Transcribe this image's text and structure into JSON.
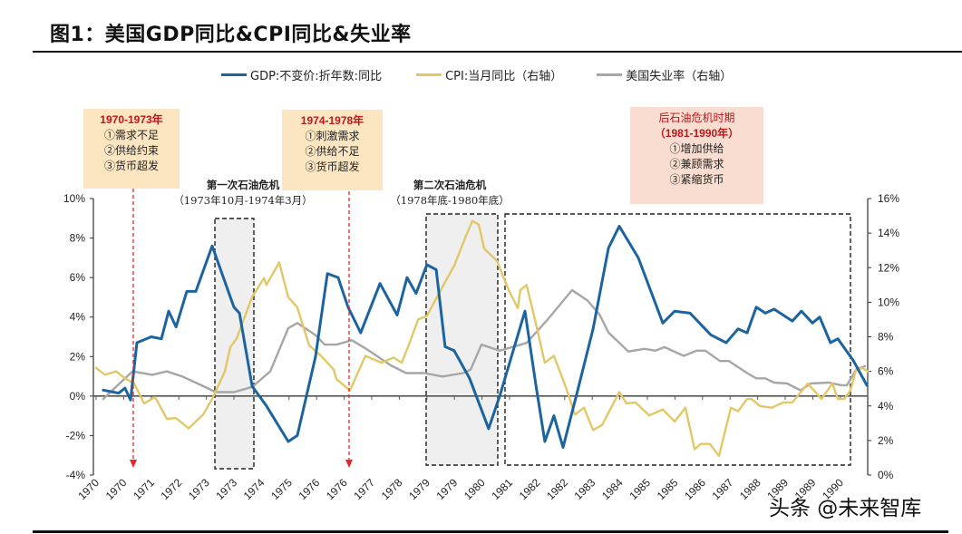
{
  "title": "图1：美国GDP同比&CPI同比&失业率",
  "annotations": {
    "box1": {
      "heading": "1970-1973年",
      "lines": [
        "①需求不足",
        "②供给约束",
        "③货币超发"
      ]
    },
    "box2": {
      "heading": "1974-1978年",
      "lines": [
        "①刺激需求",
        "②供给不足",
        "③货币超发"
      ]
    },
    "box3": {
      "heading": "后石油危机时期",
      "subheading": "（1981-1990年）",
      "lines": [
        "①增加供给",
        "②兼顾需求",
        "③紧缩货币"
      ]
    },
    "crisis1": {
      "name": "第一次石油危机",
      "period": "（1973年10月-1974年3月）"
    },
    "crisis2": {
      "name": "第二次石油危机",
      "period": "（1978年底-1980年底）"
    }
  },
  "watermark": "头条 @未来智库",
  "colors": {
    "gdp": "#1c64a0",
    "cpi": "#e2c766",
    "unemployment": "#a6a6a6",
    "arrow": "#e8262b",
    "box12": "#fce6c2",
    "box3": "#f9ddd0",
    "shade": "#efefef"
  },
  "chart_data": {
    "type": "line",
    "title": "",
    "legend_position": "top",
    "grid": false,
    "x_tick_labels": [
      "1970",
      "1970",
      "1971",
      "1972",
      "1973",
      "1973",
      "1974",
      "1975",
      "1976",
      "1976",
      "1977",
      "1978",
      "1979",
      "1979",
      "1980",
      "1981",
      "1982",
      "1982",
      "1983",
      "1984",
      "1985",
      "1985",
      "1986",
      "1987",
      "1988",
      "1989",
      "1989",
      "1990"
    ],
    "x_unit_note": "x values are positions along the category axis (tick index)",
    "y_left": {
      "range": [
        -4,
        10
      ],
      "ticks": [
        "-4%",
        "-2%",
        "0%",
        "2%",
        "4%",
        "6%",
        "8%",
        "10%"
      ]
    },
    "y_right": {
      "range": [
        0,
        16
      ],
      "ticks": [
        "0%",
        "2%",
        "4%",
        "6%",
        "8%",
        "10%",
        "12%",
        "14%",
        "16%"
      ]
    },
    "series": [
      {
        "name": "GDP:不变价:折年数:同比",
        "axis": "left",
        "color": "#1c64a0",
        "points": [
          [
            0.26,
            0.3
          ],
          [
            0.82,
            0.15
          ],
          [
            1.05,
            0.4
          ],
          [
            1.25,
            -0.2
          ],
          [
            1.48,
            2.7
          ],
          [
            2.0,
            3.0
          ],
          [
            2.37,
            2.9
          ],
          [
            2.63,
            4.3
          ],
          [
            2.9,
            3.5
          ],
          [
            3.29,
            5.3
          ],
          [
            3.62,
            5.3
          ],
          [
            4.21,
            7.6
          ],
          [
            5.0,
            4.5
          ],
          [
            5.2,
            4.2
          ],
          [
            5.66,
            0.5
          ],
          [
            6.18,
            -0.5
          ],
          [
            6.97,
            -2.3
          ],
          [
            7.3,
            -2.0
          ],
          [
            7.96,
            2.0
          ],
          [
            8.39,
            6.2
          ],
          [
            8.78,
            6.0
          ],
          [
            9.14,
            4.5
          ],
          [
            9.6,
            3.2
          ],
          [
            10.3,
            5.7
          ],
          [
            10.92,
            4.1
          ],
          [
            11.28,
            6.0
          ],
          [
            11.61,
            5.2
          ],
          [
            12.0,
            6.65
          ],
          [
            12.34,
            6.4
          ],
          [
            12.66,
            2.5
          ],
          [
            12.99,
            2.3
          ],
          [
            13.55,
            0.9
          ],
          [
            14.24,
            -1.65
          ],
          [
            14.64,
            0
          ],
          [
            15.56,
            4.3
          ],
          [
            15.95,
            0.6
          ],
          [
            16.28,
            -2.3
          ],
          [
            16.61,
            -1.0
          ],
          [
            16.94,
            -2.6
          ],
          [
            17.5,
            0.45
          ],
          [
            18.03,
            3.4
          ],
          [
            18.59,
            7.5
          ],
          [
            18.98,
            8.6
          ],
          [
            19.67,
            7.0
          ],
          [
            20.56,
            3.7
          ],
          [
            20.99,
            4.3
          ],
          [
            21.55,
            4.2
          ],
          [
            22.3,
            3.1
          ],
          [
            22.86,
            2.7
          ],
          [
            23.29,
            3.4
          ],
          [
            23.62,
            3.2
          ],
          [
            23.95,
            4.5
          ],
          [
            24.28,
            4.2
          ],
          [
            24.6,
            4.4
          ],
          [
            25.26,
            3.8
          ],
          [
            25.59,
            4.3
          ],
          [
            25.99,
            3.7
          ],
          [
            26.25,
            4.0
          ],
          [
            26.64,
            2.7
          ],
          [
            26.91,
            2.9
          ],
          [
            27.47,
            1.8
          ],
          [
            27.96,
            0.55
          ]
        ]
      },
      {
        "name": "CPI:当月同比（右轴）",
        "axis": "right",
        "color": "#e2c766",
        "points": [
          [
            0,
            6.2
          ],
          [
            0.33,
            5.8
          ],
          [
            0.72,
            6.0
          ],
          [
            1.05,
            5.6
          ],
          [
            1.38,
            5.3
          ],
          [
            1.74,
            4.15
          ],
          [
            2.14,
            4.5
          ],
          [
            2.57,
            3.25
          ],
          [
            2.89,
            3.3
          ],
          [
            3.36,
            2.7
          ],
          [
            3.88,
            3.5
          ],
          [
            4.21,
            4.4
          ],
          [
            4.67,
            6.0
          ],
          [
            4.87,
            7.4
          ],
          [
            5.1,
            7.9
          ],
          [
            5.66,
            10.3
          ],
          [
            6.09,
            11.4
          ],
          [
            6.18,
            11.0
          ],
          [
            6.64,
            12.3
          ],
          [
            6.97,
            10.3
          ],
          [
            7.3,
            9.7
          ],
          [
            7.73,
            7.5
          ],
          [
            8.16,
            6.9
          ],
          [
            8.62,
            6.1
          ],
          [
            8.72,
            5.55
          ],
          [
            9.21,
            4.9
          ],
          [
            9.77,
            6.9
          ],
          [
            10.36,
            6.5
          ],
          [
            10.79,
            6.8
          ],
          [
            11.09,
            6.5
          ],
          [
            11.35,
            7.55
          ],
          [
            11.68,
            9.0
          ],
          [
            12.0,
            9.2
          ],
          [
            12.57,
            10.9
          ],
          [
            12.99,
            12.1
          ],
          [
            13.42,
            13.85
          ],
          [
            13.65,
            14.7
          ],
          [
            13.88,
            14.5
          ],
          [
            14.08,
            13.1
          ],
          [
            14.54,
            12.4
          ],
          [
            14.97,
            10.7
          ],
          [
            15.3,
            9.65
          ],
          [
            15.39,
            10.7
          ],
          [
            15.62,
            11.0
          ],
          [
            15.95,
            8.8
          ],
          [
            16.28,
            6.5
          ],
          [
            16.61,
            6.9
          ],
          [
            17.04,
            5.1
          ],
          [
            17.37,
            3.5
          ],
          [
            17.7,
            3.9
          ],
          [
            18.03,
            2.6
          ],
          [
            18.36,
            2.9
          ],
          [
            18.98,
            4.8
          ],
          [
            19.24,
            4.15
          ],
          [
            19.57,
            4.2
          ],
          [
            20.07,
            3.45
          ],
          [
            20.56,
            3.8
          ],
          [
            20.99,
            3.1
          ],
          [
            21.38,
            3.9
          ],
          [
            21.71,
            1.5
          ],
          [
            21.94,
            1.8
          ],
          [
            22.27,
            1.8
          ],
          [
            22.6,
            1.1
          ],
          [
            23.03,
            3.9
          ],
          [
            23.29,
            3.7
          ],
          [
            23.62,
            4.4
          ],
          [
            23.78,
            4.4
          ],
          [
            24.08,
            4.0
          ],
          [
            24.51,
            3.9
          ],
          [
            24.93,
            4.2
          ],
          [
            25.26,
            4.2
          ],
          [
            25.82,
            5.3
          ],
          [
            26.32,
            4.4
          ],
          [
            26.71,
            5.3
          ],
          [
            26.91,
            4.4
          ],
          [
            27.14,
            4.4
          ],
          [
            27.37,
            4.9
          ],
          [
            27.57,
            6.1
          ],
          [
            27.8,
            6.2
          ],
          [
            28.0,
            6.0
          ]
        ]
      },
      {
        "name": "美国失业率（右轴）",
        "axis": "right",
        "color": "#a6a6a6",
        "points": [
          [
            0.26,
            4.4
          ],
          [
            0.72,
            5.1
          ],
          [
            1.32,
            6.0
          ],
          [
            2.04,
            5.8
          ],
          [
            2.57,
            6.0
          ],
          [
            3.13,
            5.7
          ],
          [
            3.68,
            5.3
          ],
          [
            4.34,
            4.8
          ],
          [
            5.0,
            4.8
          ],
          [
            5.66,
            5.1
          ],
          [
            6.32,
            6.0
          ],
          [
            6.97,
            8.5
          ],
          [
            7.3,
            8.8
          ],
          [
            7.96,
            8.1
          ],
          [
            8.29,
            7.55
          ],
          [
            8.72,
            7.55
          ],
          [
            9.28,
            7.8
          ],
          [
            9.8,
            7.3
          ],
          [
            10.69,
            6.35
          ],
          [
            11.25,
            5.9
          ],
          [
            11.91,
            5.9
          ],
          [
            12.57,
            5.7
          ],
          [
            13.32,
            5.9
          ],
          [
            13.59,
            6.1
          ],
          [
            13.98,
            7.55
          ],
          [
            14.64,
            7.2
          ],
          [
            15.62,
            7.65
          ],
          [
            16.38,
            9.0
          ],
          [
            17.27,
            10.7
          ],
          [
            17.83,
            10.1
          ],
          [
            18.26,
            9.3
          ],
          [
            18.59,
            8.25
          ],
          [
            19.31,
            7.15
          ],
          [
            19.9,
            7.3
          ],
          [
            20.3,
            7.2
          ],
          [
            20.62,
            7.4
          ],
          [
            21.32,
            6.9
          ],
          [
            21.78,
            7.2
          ],
          [
            22.11,
            7.2
          ],
          [
            22.63,
            6.6
          ],
          [
            22.96,
            6.6
          ],
          [
            23.62,
            5.9
          ],
          [
            23.95,
            5.6
          ],
          [
            24.28,
            5.6
          ],
          [
            24.6,
            5.35
          ],
          [
            25.07,
            5.3
          ],
          [
            25.56,
            4.9
          ],
          [
            25.92,
            5.3
          ],
          [
            26.58,
            5.35
          ],
          [
            27.04,
            5.2
          ],
          [
            27.24,
            5.2
          ],
          [
            27.57,
            6.1
          ],
          [
            27.89,
            6.3
          ]
        ]
      }
    ]
  }
}
